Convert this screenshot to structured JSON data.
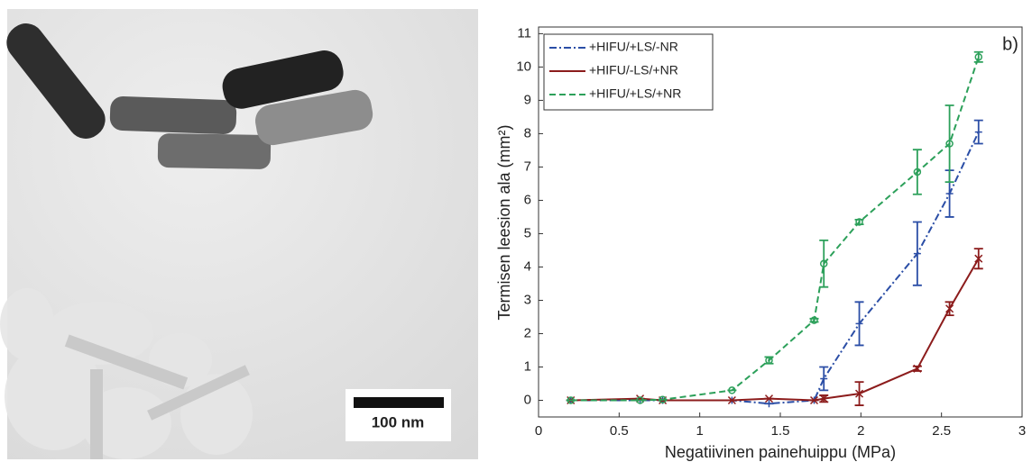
{
  "micrograph": {
    "scale_bar_label": "100 nm"
  },
  "chart_data": {
    "type": "line",
    "annotation": "b)",
    "xlabel": "Negatiivinen painehuippu (MPa)",
    "ylabel": "Termisen leesion ala (mm²)",
    "xlim": [
      0,
      3
    ],
    "ylim": [
      -0.5,
      11.2
    ],
    "xticks": [
      0,
      0.5,
      1,
      1.5,
      2,
      2.5,
      3
    ],
    "yticks": [
      0,
      1,
      2,
      3,
      4,
      5,
      6,
      7,
      8,
      9,
      10,
      11
    ],
    "legend": "upper left",
    "x": [
      0.2,
      0.63,
      0.77,
      1.2,
      1.43,
      1.71,
      1.77,
      1.99,
      2.35,
      2.55,
      2.73
    ],
    "series": [
      {
        "name": "+HIFU/+LS/-NR",
        "color": "#2b4ea6",
        "linestyle": "dashdot",
        "marker": "plus",
        "values": [
          0,
          0,
          0,
          0,
          -0.1,
          0,
          0.65,
          2.3,
          4.4,
          6.2,
          8.05
        ],
        "errors": [
          0,
          0,
          0,
          0,
          0,
          0,
          0.35,
          0.65,
          0.95,
          0.7,
          0.35
        ]
      },
      {
        "name": "+HIFU/-LS/+NR",
        "color": "#8c1c1c",
        "linestyle": "solid",
        "marker": "cross",
        "values": [
          0,
          0.05,
          0,
          0,
          0.05,
          0,
          0.05,
          0.2,
          0.95,
          2.75,
          4.25
        ],
        "errors": [
          0,
          0,
          0,
          0,
          0,
          0,
          0.1,
          0.35,
          0.07,
          0.2,
          0.3
        ]
      },
      {
        "name": "+HIFU/+LS/+NR",
        "color": "#2ca05a",
        "linestyle": "dashed",
        "marker": "circle",
        "values": [
          0,
          0,
          0.02,
          0.3,
          1.2,
          2.4,
          4.1,
          5.35,
          6.85,
          7.7,
          10.3
        ],
        "errors": [
          0,
          0,
          0,
          0,
          0.1,
          0.05,
          0.7,
          0.07,
          0.67,
          1.15,
          0.15
        ]
      }
    ]
  }
}
